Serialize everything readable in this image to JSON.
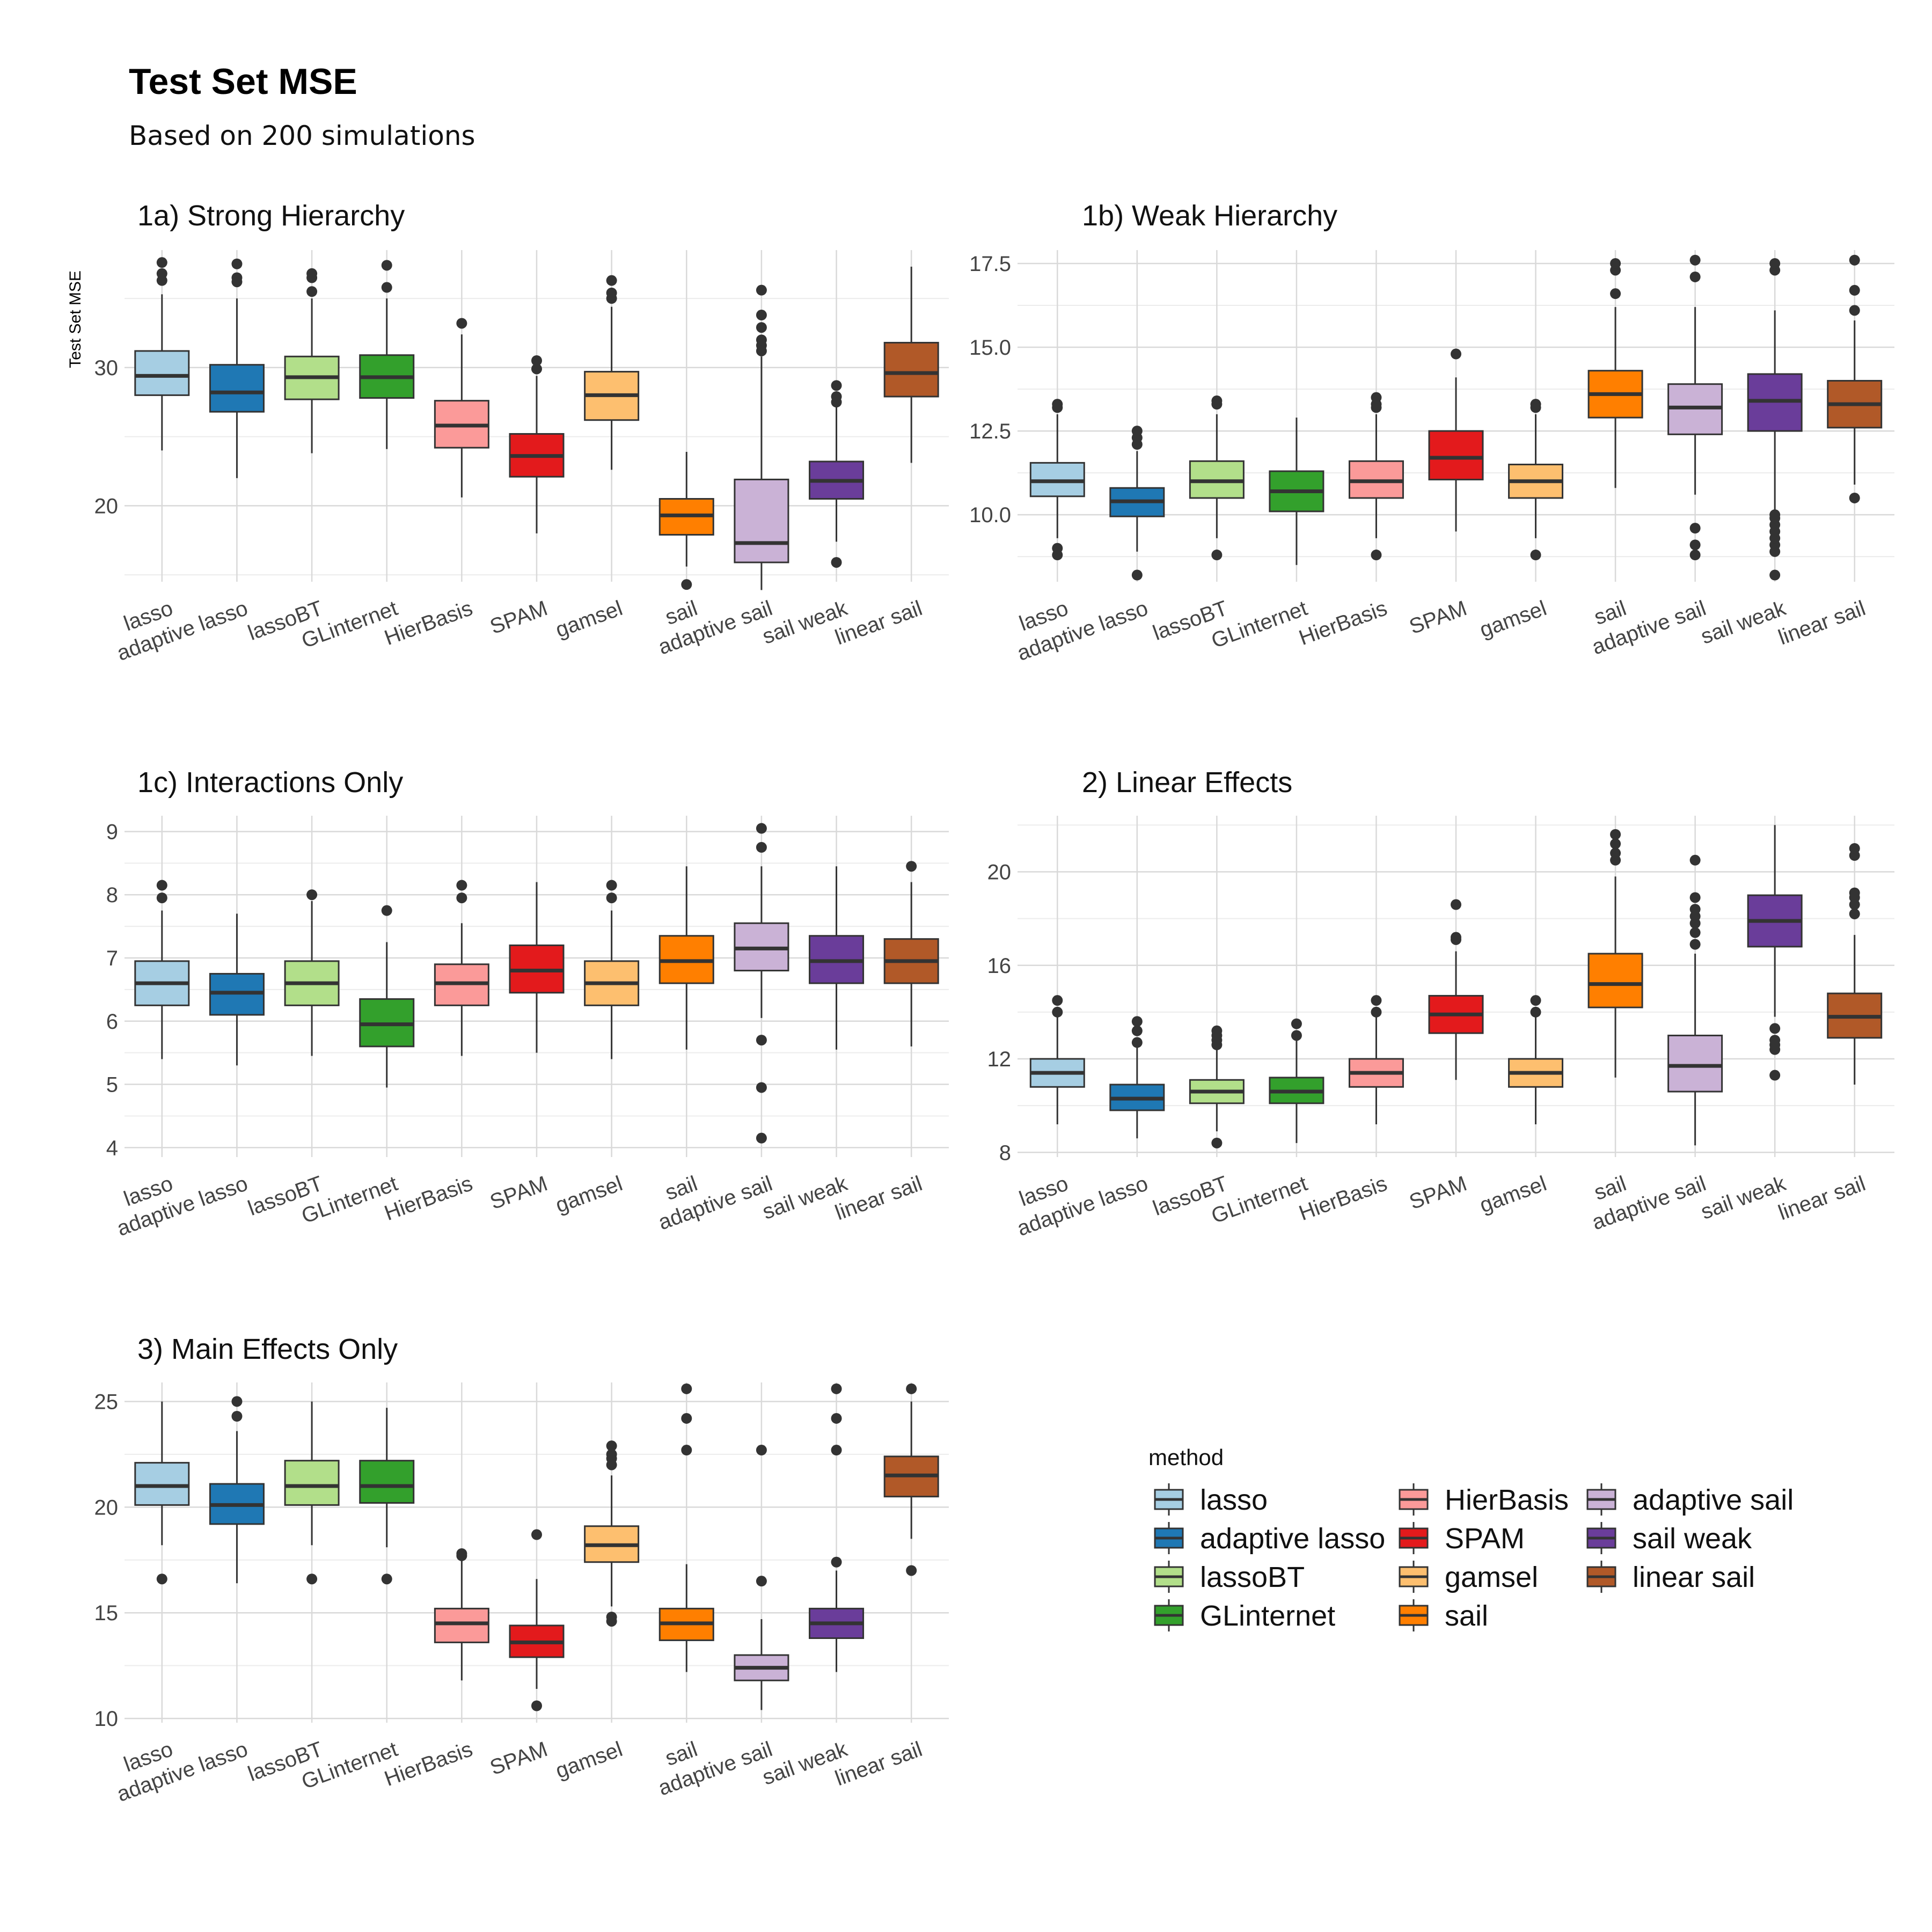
{
  "title": "Test Set MSE",
  "subtitle": "Based on 200 simulations",
  "methods": [
    "lasso",
    "adaptive lasso",
    "lassoBT",
    "GLinternet",
    "HierBasis",
    "SPAM",
    "gamsel",
    "sail",
    "adaptive sail",
    "sail weak",
    "linear sail"
  ],
  "colors": {
    "lasso": "#a6cee3",
    "adaptive lasso": "#1f78b4",
    "lassoBT": "#b2df8a",
    "GLinternet": "#33a02c",
    "HierBasis": "#fb9a99",
    "SPAM": "#e31a1c",
    "gamsel": "#fdbf6f",
    "sail": "#ff7f00",
    "adaptive sail": "#cab2d6",
    "sail weak": "#6a3d9a",
    "linear sail": "#b15928"
  },
  "legend": {
    "title": "method",
    "columns": [
      [
        "lasso",
        "adaptive lasso",
        "lassoBT",
        "GLinternet"
      ],
      [
        "HierBasis",
        "SPAM",
        "gamsel",
        "sail"
      ],
      [
        "adaptive sail",
        "sail weak",
        "linear sail"
      ]
    ]
  },
  "chart_data": [
    {
      "type": "boxplot",
      "title": "1a) Strong Hierarchy",
      "ylabel": "Test Set MSE",
      "ylim": [
        14.5,
        38.5
      ],
      "yticks": [
        20,
        30
      ],
      "grid": true,
      "boxes": [
        {
          "method": "lasso",
          "min": 24.0,
          "q1": 28.0,
          "median": 29.4,
          "q3": 31.2,
          "max": 35.3,
          "outliers": [
            36.3,
            36.8,
            37.6
          ]
        },
        {
          "method": "adaptive lasso",
          "min": 22.0,
          "q1": 26.8,
          "median": 28.2,
          "q3": 30.2,
          "max": 35.0,
          "outliers": [
            36.2,
            36.5,
            37.5
          ]
        },
        {
          "method": "lassoBT",
          "min": 23.8,
          "q1": 27.7,
          "median": 29.3,
          "q3": 30.8,
          "max": 35.0,
          "outliers": [
            35.5,
            36.5,
            36.8
          ]
        },
        {
          "method": "GLinternet",
          "min": 24.1,
          "q1": 27.8,
          "median": 29.3,
          "q3": 30.9,
          "max": 35.0,
          "outliers": [
            35.8,
            37.4
          ]
        },
        {
          "method": "HierBasis",
          "min": 20.6,
          "q1": 24.2,
          "median": 25.8,
          "q3": 27.6,
          "max": 32.4,
          "outliers": [
            33.2
          ]
        },
        {
          "method": "SPAM",
          "min": 18.0,
          "q1": 22.1,
          "median": 23.6,
          "q3": 25.2,
          "max": 29.4,
          "outliers": [
            29.9,
            30.5
          ]
        },
        {
          "method": "gamsel",
          "min": 22.6,
          "q1": 26.2,
          "median": 28.0,
          "q3": 29.7,
          "max": 34.4,
          "outliers": [
            35.0,
            35.4,
            36.3
          ]
        },
        {
          "method": "sail",
          "min": 15.6,
          "q1": 17.9,
          "median": 19.3,
          "q3": 20.5,
          "max": 23.9,
          "outliers": [
            14.3
          ]
        },
        {
          "method": "adaptive sail",
          "min": 13.9,
          "q1": 15.9,
          "median": 17.3,
          "q3": 21.9,
          "max": 30.8,
          "outliers": [
            31.2,
            31.6,
            32.0,
            32.9,
            33.8,
            35.6
          ]
        },
        {
          "method": "sail weak",
          "min": 17.4,
          "q1": 20.5,
          "median": 21.8,
          "q3": 23.2,
          "max": 27.2,
          "outliers": [
            15.9,
            27.5,
            27.9,
            28.7
          ]
        },
        {
          "method": "linear sail",
          "min": 23.1,
          "q1": 27.9,
          "median": 29.6,
          "q3": 31.8,
          "max": 37.3,
          "outliers": []
        }
      ]
    },
    {
      "type": "boxplot",
      "title": "1b) Weak Hierarchy",
      "ylim": [
        8.0,
        17.9
      ],
      "yticks": [
        10.0,
        12.5,
        15.0,
        17.5
      ],
      "yticklabels": [
        "10.0",
        "12.5",
        "15.0",
        "17.5"
      ],
      "grid": true,
      "boxes": [
        {
          "method": "lasso",
          "min": 9.3,
          "q1": 10.55,
          "median": 11.0,
          "q3": 11.55,
          "max": 13.0,
          "outliers": [
            8.8,
            9.0,
            13.2,
            13.3
          ]
        },
        {
          "method": "adaptive lasso",
          "min": 8.9,
          "q1": 9.95,
          "median": 10.4,
          "q3": 10.8,
          "max": 11.9,
          "outliers": [
            8.2,
            12.1,
            12.3,
            12.5
          ]
        },
        {
          "method": "lassoBT",
          "min": 9.3,
          "q1": 10.5,
          "median": 11.0,
          "q3": 11.6,
          "max": 13.0,
          "outliers": [
            8.8,
            13.3,
            13.4
          ]
        },
        {
          "method": "GLinternet",
          "min": 8.5,
          "q1": 10.1,
          "median": 10.7,
          "q3": 11.3,
          "max": 12.9,
          "outliers": []
        },
        {
          "method": "HierBasis",
          "min": 9.3,
          "q1": 10.5,
          "median": 11.0,
          "q3": 11.6,
          "max": 13.0,
          "outliers": [
            8.8,
            13.2,
            13.3,
            13.5
          ]
        },
        {
          "method": "SPAM",
          "min": 9.5,
          "q1": 11.05,
          "median": 11.7,
          "q3": 12.5,
          "max": 14.1,
          "outliers": [
            14.8
          ]
        },
        {
          "method": "gamsel",
          "min": 9.3,
          "q1": 10.5,
          "median": 11.0,
          "q3": 11.5,
          "max": 13.0,
          "outliers": [
            8.8,
            13.2,
            13.3
          ]
        },
        {
          "method": "sail",
          "min": 10.8,
          "q1": 12.9,
          "median": 13.6,
          "q3": 14.3,
          "max": 16.2,
          "outliers": [
            16.6,
            17.3,
            17.5
          ]
        },
        {
          "method": "adaptive sail",
          "min": 10.6,
          "q1": 12.4,
          "median": 13.2,
          "q3": 13.9,
          "max": 16.2,
          "outliers": [
            8.8,
            9.1,
            9.6,
            17.1,
            17.6
          ]
        },
        {
          "method": "sail weak",
          "min": 10.1,
          "q1": 12.5,
          "median": 13.4,
          "q3": 14.2,
          "max": 16.1,
          "outliers": [
            8.2,
            8.9,
            9.1,
            9.3,
            9.5,
            9.7,
            9.9,
            10.0,
            17.3,
            17.5
          ]
        },
        {
          "method": "linear sail",
          "min": 10.9,
          "q1": 12.6,
          "median": 13.3,
          "q3": 14.0,
          "max": 15.8,
          "outliers": [
            10.5,
            16.1,
            16.7,
            17.6
          ]
        }
      ]
    },
    {
      "type": "boxplot",
      "title": "1c) Interactions Only",
      "ylim": [
        3.85,
        9.25
      ],
      "yticks": [
        4,
        5,
        6,
        7,
        8,
        9
      ],
      "grid": true,
      "boxes": [
        {
          "method": "lasso",
          "min": 5.4,
          "q1": 6.25,
          "median": 6.6,
          "q3": 6.95,
          "max": 7.75,
          "outliers": [
            7.95,
            8.15
          ]
        },
        {
          "method": "adaptive lasso",
          "min": 5.3,
          "q1": 6.1,
          "median": 6.45,
          "q3": 6.75,
          "max": 7.7,
          "outliers": []
        },
        {
          "method": "lassoBT",
          "min": 5.45,
          "q1": 6.25,
          "median": 6.6,
          "q3": 6.95,
          "max": 7.9,
          "outliers": [
            8.0
          ]
        },
        {
          "method": "GLinternet",
          "min": 4.95,
          "q1": 5.6,
          "median": 5.95,
          "q3": 6.35,
          "max": 7.25,
          "outliers": [
            7.75
          ]
        },
        {
          "method": "HierBasis",
          "min": 5.45,
          "q1": 6.25,
          "median": 6.6,
          "q3": 6.9,
          "max": 7.55,
          "outliers": [
            7.95,
            8.15
          ]
        },
        {
          "method": "SPAM",
          "min": 5.5,
          "q1": 6.45,
          "median": 6.8,
          "q3": 7.2,
          "max": 8.2,
          "outliers": []
        },
        {
          "method": "gamsel",
          "min": 5.4,
          "q1": 6.25,
          "median": 6.6,
          "q3": 6.95,
          "max": 7.75,
          "outliers": [
            7.95,
            8.15
          ]
        },
        {
          "method": "sail",
          "min": 5.55,
          "q1": 6.6,
          "median": 6.95,
          "q3": 7.35,
          "max": 8.45,
          "outliers": []
        },
        {
          "method": "adaptive sail",
          "min": 6.05,
          "q1": 6.8,
          "median": 7.15,
          "q3": 7.55,
          "max": 8.45,
          "outliers": [
            4.15,
            4.95,
            5.7,
            8.75,
            9.05
          ]
        },
        {
          "method": "sail weak",
          "min": 5.55,
          "q1": 6.6,
          "median": 6.95,
          "q3": 7.35,
          "max": 8.45,
          "outliers": []
        },
        {
          "method": "linear sail",
          "min": 5.6,
          "q1": 6.6,
          "median": 6.95,
          "q3": 7.3,
          "max": 8.2,
          "outliers": [
            8.45
          ]
        }
      ]
    },
    {
      "type": "boxplot",
      "title": "2) Linear Effects",
      "ylim": [
        7.8,
        22.4
      ],
      "yticks": [
        8,
        12,
        16,
        20
      ],
      "grid": true,
      "boxes": [
        {
          "method": "lasso",
          "min": 9.2,
          "q1": 10.8,
          "median": 11.4,
          "q3": 12.0,
          "max": 13.8,
          "outliers": [
            14.0,
            14.5
          ]
        },
        {
          "method": "adaptive lasso",
          "min": 8.6,
          "q1": 9.8,
          "median": 10.3,
          "q3": 10.9,
          "max": 12.5,
          "outliers": [
            12.7,
            13.2,
            13.6
          ]
        },
        {
          "method": "lassoBT",
          "min": 8.9,
          "q1": 10.1,
          "median": 10.6,
          "q3": 11.1,
          "max": 12.5,
          "outliers": [
            8.4,
            12.6,
            12.8,
            13.0,
            13.2
          ]
        },
        {
          "method": "GLinternet",
          "min": 8.4,
          "q1": 10.1,
          "median": 10.6,
          "q3": 11.2,
          "max": 12.8,
          "outliers": [
            13.0,
            13.5
          ]
        },
        {
          "method": "HierBasis",
          "min": 9.2,
          "q1": 10.8,
          "median": 11.4,
          "q3": 12.0,
          "max": 13.8,
          "outliers": [
            14.0,
            14.5
          ]
        },
        {
          "method": "SPAM",
          "min": 11.1,
          "q1": 13.1,
          "median": 13.9,
          "q3": 14.7,
          "max": 16.6,
          "outliers": [
            17.1,
            17.2,
            18.6
          ]
        },
        {
          "method": "gamsel",
          "min": 9.2,
          "q1": 10.8,
          "median": 11.4,
          "q3": 12.0,
          "max": 13.8,
          "outliers": [
            14.0,
            14.5
          ]
        },
        {
          "method": "sail",
          "min": 11.2,
          "q1": 14.2,
          "median": 15.2,
          "q3": 16.5,
          "max": 19.8,
          "outliers": [
            20.5,
            20.8,
            21.2,
            21.6
          ]
        },
        {
          "method": "adaptive sail",
          "min": 8.3,
          "q1": 10.6,
          "median": 11.7,
          "q3": 13.0,
          "max": 16.5,
          "outliers": [
            16.9,
            17.4,
            17.8,
            18.1,
            18.4,
            18.9,
            20.5
          ]
        },
        {
          "method": "sail weak",
          "min": 13.8,
          "q1": 16.8,
          "median": 17.9,
          "q3": 19.0,
          "max": 22.0,
          "outliers": [
            11.3,
            12.4,
            12.6,
            12.8,
            13.3
          ]
        },
        {
          "method": "linear sail",
          "min": 10.9,
          "q1": 12.9,
          "median": 13.8,
          "q3": 14.8,
          "max": 17.3,
          "outliers": [
            18.2,
            18.6,
            18.9,
            19.1,
            20.7,
            21.0
          ]
        }
      ]
    },
    {
      "type": "boxplot",
      "title": "3) Main Effects Only",
      "ylim": [
        9.8,
        25.9
      ],
      "yticks": [
        10,
        15,
        20,
        25
      ],
      "grid": true,
      "boxes": [
        {
          "method": "lasso",
          "min": 18.2,
          "q1": 20.1,
          "median": 21.0,
          "q3": 22.1,
          "max": 25.0,
          "outliers": [
            16.6
          ]
        },
        {
          "method": "adaptive lasso",
          "min": 16.4,
          "q1": 19.2,
          "median": 20.1,
          "q3": 21.1,
          "max": 23.6,
          "outliers": [
            24.3,
            25.0
          ]
        },
        {
          "method": "lassoBT",
          "min": 18.2,
          "q1": 20.1,
          "median": 21.0,
          "q3": 22.2,
          "max": 25.0,
          "outliers": [
            16.6
          ]
        },
        {
          "method": "GLinternet",
          "min": 18.1,
          "q1": 20.2,
          "median": 21.0,
          "q3": 22.2,
          "max": 24.7,
          "outliers": [
            16.6
          ]
        },
        {
          "method": "HierBasis",
          "min": 11.8,
          "q1": 13.6,
          "median": 14.5,
          "q3": 15.2,
          "max": 17.5,
          "outliers": [
            17.7,
            17.8
          ]
        },
        {
          "method": "SPAM",
          "min": 11.4,
          "q1": 12.9,
          "median": 13.6,
          "q3": 14.4,
          "max": 16.6,
          "outliers": [
            10.6,
            18.7
          ]
        },
        {
          "method": "gamsel",
          "min": 15.3,
          "q1": 17.4,
          "median": 18.2,
          "q3": 19.1,
          "max": 21.5,
          "outliers": [
            14.6,
            14.8,
            22.0,
            22.3,
            22.5,
            22.9
          ]
        },
        {
          "method": "sail",
          "min": 12.2,
          "q1": 13.7,
          "median": 14.5,
          "q3": 15.2,
          "max": 17.3,
          "outliers": [
            22.7,
            24.2,
            25.6
          ]
        },
        {
          "method": "adaptive sail",
          "min": 10.4,
          "q1": 11.8,
          "median": 12.4,
          "q3": 13.0,
          "max": 14.7,
          "outliers": [
            16.5,
            22.7
          ]
        },
        {
          "method": "sail weak",
          "min": 12.2,
          "q1": 13.8,
          "median": 14.5,
          "q3": 15.2,
          "max": 17.0,
          "outliers": [
            17.4,
            22.7,
            24.2,
            25.6
          ]
        },
        {
          "method": "linear sail",
          "min": 18.5,
          "q1": 20.5,
          "median": 21.5,
          "q3": 22.4,
          "max": 25.0,
          "outliers": [
            17.0,
            25.6
          ]
        }
      ]
    }
  ]
}
